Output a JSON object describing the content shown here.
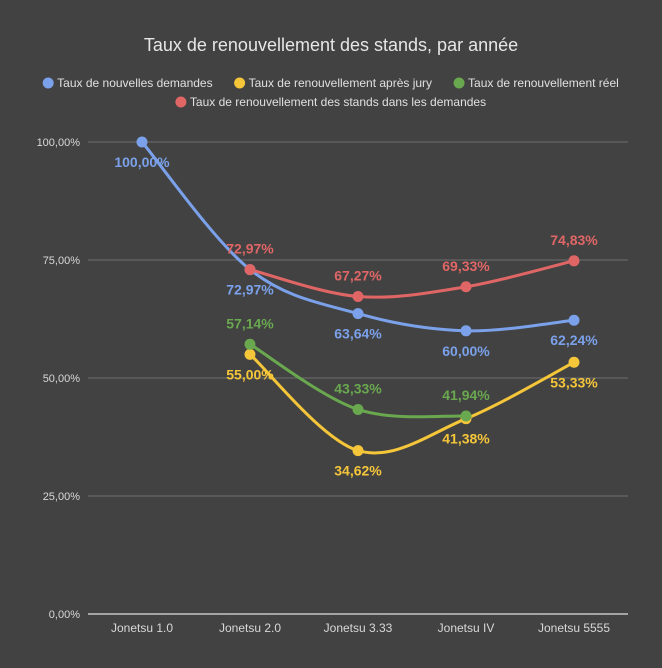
{
  "chart_data": {
    "type": "line",
    "title": "Taux de renouvellement des stands, par année",
    "xlabel": "",
    "ylabel": "",
    "categories": [
      "Jonetsu 1.0",
      "Jonetsu 2.0",
      "Jonetsu 3.33",
      "Jonetsu IV",
      "Jonetsu 5555"
    ],
    "ylim": [
      0,
      100
    ],
    "yticks": [
      0,
      25,
      50,
      75,
      100
    ],
    "ytick_labels": [
      "0,00%",
      "25,00%",
      "50,00%",
      "75,00%",
      "100,00%"
    ],
    "grid": true,
    "legend_position": "top",
    "smooth": true,
    "series": [
      {
        "name": "Taux de nouvelles demandes",
        "color": "#7ba1ea",
        "values": [
          100.0,
          72.97,
          63.64,
          60.0,
          62.24
        ],
        "labels": [
          "100,00%",
          "72,97%",
          "63,64%",
          "60,00%",
          "62,24%"
        ],
        "label_position": [
          "below",
          "below",
          "below",
          "below",
          "below"
        ]
      },
      {
        "name": "Taux de renouvellement après jury",
        "color": "#f5c63a",
        "values": [
          null,
          55.0,
          34.62,
          41.38,
          53.33
        ],
        "labels": [
          null,
          "55,00%",
          "34,62%",
          "41,38%",
          "53,33%"
        ],
        "label_position": [
          null,
          "below",
          "below",
          "below",
          "below"
        ]
      },
      {
        "name": "Taux de renouvellement réel",
        "color": "#6aa84f",
        "values": [
          null,
          57.14,
          43.33,
          41.94,
          null
        ],
        "labels": [
          null,
          "57,14%",
          "43,33%",
          "41,94%",
          null
        ],
        "label_position": [
          null,
          "above",
          "above",
          "above",
          null
        ]
      },
      {
        "name": "Taux de renouvellement des stands dans les demandes",
        "color": "#e06666",
        "values": [
          null,
          72.97,
          67.27,
          69.33,
          74.83
        ],
        "labels": [
          null,
          "72,97%",
          "67,27%",
          "69,33%",
          "74,83%"
        ],
        "label_position": [
          null,
          "above",
          "above",
          "above",
          "above"
        ]
      }
    ]
  }
}
